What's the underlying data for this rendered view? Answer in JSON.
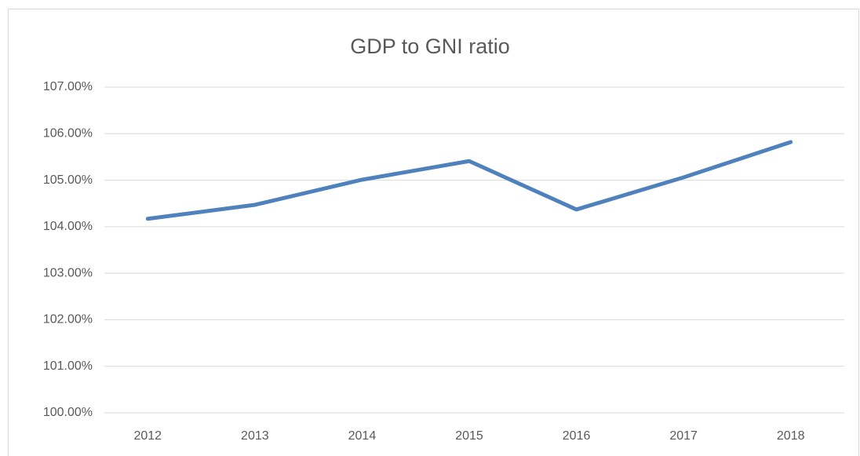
{
  "chart_data": {
    "type": "line",
    "title": "GDP to GNI ratio",
    "categories": [
      "2012",
      "2013",
      "2014",
      "2015",
      "2016",
      "2017",
      "2018"
    ],
    "series": [
      {
        "name": "GDP to GNI ratio",
        "color": "#4f81bd",
        "values": [
          104.17,
          104.47,
          105.01,
          105.41,
          104.37,
          105.06,
          105.82
        ]
      }
    ],
    "ylim": [
      100,
      107
    ],
    "yticks": [
      {
        "value": 100,
        "label": "100.00%"
      },
      {
        "value": 101,
        "label": "101.00%"
      },
      {
        "value": 102,
        "label": "102.00%"
      },
      {
        "value": 103,
        "label": "103.00%"
      },
      {
        "value": 104,
        "label": "104.00%"
      },
      {
        "value": 105,
        "label": "105.00%"
      },
      {
        "value": 106,
        "label": "106.00%"
      },
      {
        "value": 107,
        "label": "107.00%"
      }
    ],
    "grid": true
  }
}
